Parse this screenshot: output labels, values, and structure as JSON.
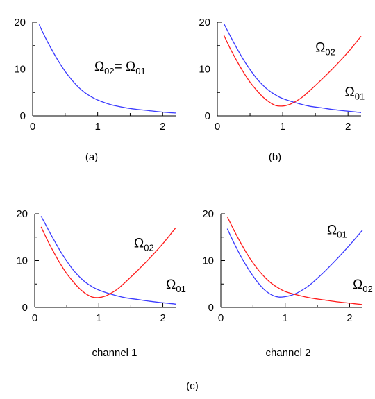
{
  "figure_label": "(c)",
  "colors": {
    "omega01": "#3a3aff",
    "omega02": "#ff1a1a",
    "axis": "#000000"
  },
  "chart_data": [
    {
      "type": "line",
      "caption": "(a)",
      "xlim": [
        0,
        2.2
      ],
      "ylim": [
        0,
        20
      ],
      "xticks": [
        "0",
        "1",
        "2"
      ],
      "yticks": [
        "0",
        "10",
        "20"
      ],
      "series": [
        {
          "color": "#3a3aff",
          "x": [
            0.1,
            0.2,
            0.3,
            0.4,
            0.5,
            0.6,
            0.7,
            0.8,
            0.9,
            1.0,
            1.2,
            1.4,
            1.6,
            1.8,
            2.0,
            2.2
          ],
          "y": [
            19.5,
            16.6,
            14.0,
            11.6,
            9.5,
            7.7,
            6.2,
            5.0,
            4.1,
            3.4,
            2.4,
            1.8,
            1.4,
            1.1,
            0.8,
            0.6
          ]
        }
      ],
      "annotations": [
        {
          "parts": [
            {
              "t": "Ω"
            },
            {
              "t": "02",
              "sub": true
            },
            {
              "t": "= Ω"
            },
            {
              "t": "01",
              "sub": true
            }
          ],
          "x": 0.95,
          "y": 9.6
        }
      ]
    },
    {
      "type": "line",
      "caption": "(b)",
      "xlim": [
        0,
        2.2
      ],
      "ylim": [
        0,
        20
      ],
      "xticks": [
        "0",
        "1",
        "2"
      ],
      "yticks": [
        "0",
        "10",
        "20"
      ],
      "series": [
        {
          "color": "#3a3aff",
          "x": [
            0.1,
            0.2,
            0.3,
            0.4,
            0.5,
            0.6,
            0.7,
            0.8,
            0.9,
            1.0,
            1.2,
            1.4,
            1.6,
            1.8,
            2.0,
            2.2
          ],
          "y": [
            19.7,
            17.0,
            14.4,
            12.0,
            9.9,
            8.0,
            6.5,
            5.3,
            4.4,
            3.7,
            2.8,
            2.1,
            1.7,
            1.3,
            1.0,
            0.7
          ]
        },
        {
          "color": "#ff1a1a",
          "x": [
            0.1,
            0.2,
            0.3,
            0.4,
            0.5,
            0.6,
            0.7,
            0.8,
            0.9,
            1.0,
            1.1,
            1.2,
            1.3,
            1.4,
            1.6,
            1.8,
            2.0,
            2.2
          ],
          "y": [
            17.2,
            14.3,
            11.7,
            9.3,
            7.2,
            5.5,
            4.0,
            2.9,
            2.2,
            2.1,
            2.4,
            3.1,
            4.0,
            5.2,
            7.8,
            10.6,
            13.6,
            17.0
          ]
        }
      ],
      "annotations": [
        {
          "parts": [
            {
              "t": "Ω"
            },
            {
              "t": "02",
              "sub": true
            }
          ],
          "x": 1.5,
          "y": 13.7
        },
        {
          "parts": [
            {
              "t": "Ω"
            },
            {
              "t": "01",
              "sub": true
            }
          ],
          "x": 1.95,
          "y": 4.2
        }
      ]
    },
    {
      "type": "line",
      "caption": "channel 1",
      "xlim": [
        0,
        2.2
      ],
      "ylim": [
        0,
        20
      ],
      "xticks": [
        "0",
        "1",
        "2"
      ],
      "yticks": [
        "0",
        "10",
        "20"
      ],
      "series": [
        {
          "color": "#3a3aff",
          "x": [
            0.1,
            0.2,
            0.3,
            0.4,
            0.5,
            0.6,
            0.7,
            0.8,
            0.9,
            1.0,
            1.2,
            1.4,
            1.6,
            1.8,
            2.0,
            2.2
          ],
          "y": [
            19.5,
            16.9,
            14.4,
            12.0,
            9.9,
            8.0,
            6.5,
            5.3,
            4.4,
            3.7,
            2.8,
            2.1,
            1.7,
            1.3,
            1.0,
            0.7
          ]
        },
        {
          "color": "#ff1a1a",
          "x": [
            0.1,
            0.2,
            0.3,
            0.4,
            0.5,
            0.6,
            0.7,
            0.8,
            0.9,
            1.0,
            1.1,
            1.2,
            1.3,
            1.4,
            1.6,
            1.8,
            2.0,
            2.2
          ],
          "y": [
            17.2,
            14.3,
            11.7,
            9.3,
            7.2,
            5.5,
            4.0,
            2.9,
            2.2,
            2.1,
            2.4,
            3.1,
            4.0,
            5.2,
            7.8,
            10.6,
            13.6,
            17.0
          ]
        }
      ],
      "annotations": [
        {
          "parts": [
            {
              "t": "Ω"
            },
            {
              "t": "02",
              "sub": true
            }
          ],
          "x": 1.55,
          "y": 12.8
        },
        {
          "parts": [
            {
              "t": "Ω"
            },
            {
              "t": "01",
              "sub": true
            }
          ],
          "x": 2.05,
          "y": 4.0
        }
      ]
    },
    {
      "type": "line",
      "caption": "channel 2",
      "xlim": [
        0,
        2.2
      ],
      "ylim": [
        0,
        20
      ],
      "xticks": [
        "0",
        "1",
        "2"
      ],
      "yticks": [
        "0",
        "10",
        "20"
      ],
      "series": [
        {
          "color": "#3a3aff",
          "x": [
            0.1,
            0.2,
            0.3,
            0.4,
            0.5,
            0.6,
            0.7,
            0.8,
            0.9,
            1.0,
            1.1,
            1.2,
            1.3,
            1.4,
            1.6,
            1.8,
            2.0,
            2.2
          ],
          "y": [
            16.8,
            13.9,
            11.2,
            8.8,
            6.7,
            4.9,
            3.5,
            2.6,
            2.2,
            2.3,
            2.6,
            3.2,
            4.0,
            5.0,
            7.5,
            10.3,
            13.3,
            16.5
          ]
        },
        {
          "color": "#ff1a1a",
          "x": [
            0.1,
            0.2,
            0.3,
            0.4,
            0.5,
            0.6,
            0.7,
            0.8,
            0.9,
            1.0,
            1.2,
            1.4,
            1.6,
            1.8,
            2.0,
            2.2
          ],
          "y": [
            19.4,
            16.6,
            14.0,
            11.6,
            9.5,
            7.7,
            6.2,
            5.0,
            4.1,
            3.4,
            2.6,
            2.0,
            1.6,
            1.2,
            0.9,
            0.6
          ]
        }
      ],
      "annotations": [
        {
          "parts": [
            {
              "t": "Ω"
            },
            {
              "t": "01",
              "sub": true
            }
          ],
          "x": 1.65,
          "y": 15.6
        },
        {
          "parts": [
            {
              "t": "Ω"
            },
            {
              "t": "02",
              "sub": true
            }
          ],
          "x": 2.05,
          "y": 4.0
        }
      ]
    }
  ]
}
